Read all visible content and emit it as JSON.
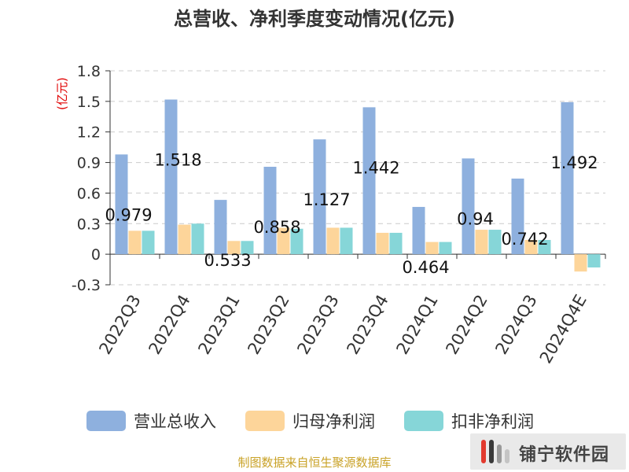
{
  "chart_data": {
    "type": "bar",
    "title": "总营收、净利季度变动情况(亿元)",
    "unit_label": "(亿元)",
    "categories": [
      "2022Q3",
      "2022Q4",
      "2023Q1",
      "2023Q2",
      "2023Q3",
      "2023Q4",
      "2024Q1",
      "2024Q2",
      "2024Q3",
      "2024Q4E"
    ],
    "series": [
      {
        "name": "营业总收入",
        "color": "#8eb0de",
        "values": [
          0.979,
          1.518,
          0.533,
          0.858,
          1.127,
          1.442,
          0.464,
          0.94,
          0.742,
          1.492
        ]
      },
      {
        "name": "归母净利润",
        "color": "#fdd59a",
        "values": [
          0.23,
          0.29,
          0.13,
          0.26,
          0.26,
          0.21,
          0.12,
          0.24,
          0.14,
          -0.17
        ]
      },
      {
        "name": "扣非净利润",
        "color": "#86d6d8",
        "values": [
          0.23,
          0.3,
          0.13,
          0.25,
          0.26,
          0.21,
          0.12,
          0.24,
          0.14,
          -0.13
        ]
      }
    ],
    "data_labels": [
      "0.979",
      "1.518",
      "0.533",
      "0.858",
      "1.127",
      "1.442",
      "0.464",
      "0.94",
      "0.742",
      "1.492"
    ],
    "ylim": [
      -0.3,
      1.8
    ],
    "yticks": [
      -0.3,
      0,
      0.3,
      0.6,
      0.9,
      1.2,
      1.5,
      1.8
    ],
    "ytick_labels": [
      "-0.3",
      "0",
      "0.3",
      "0.6",
      "0.9",
      "1.2",
      "1.5",
      "1.8"
    ],
    "grid": true,
    "legend_position": "bottom"
  },
  "source_note": "制图数据来自恒生聚源数据库",
  "watermark": {
    "text": "铺宁软件园"
  },
  "colors": {
    "title": "#333333",
    "axis": "#333333",
    "grid": "#cccccc",
    "unit": "#e00000",
    "source": "#c9a227"
  }
}
